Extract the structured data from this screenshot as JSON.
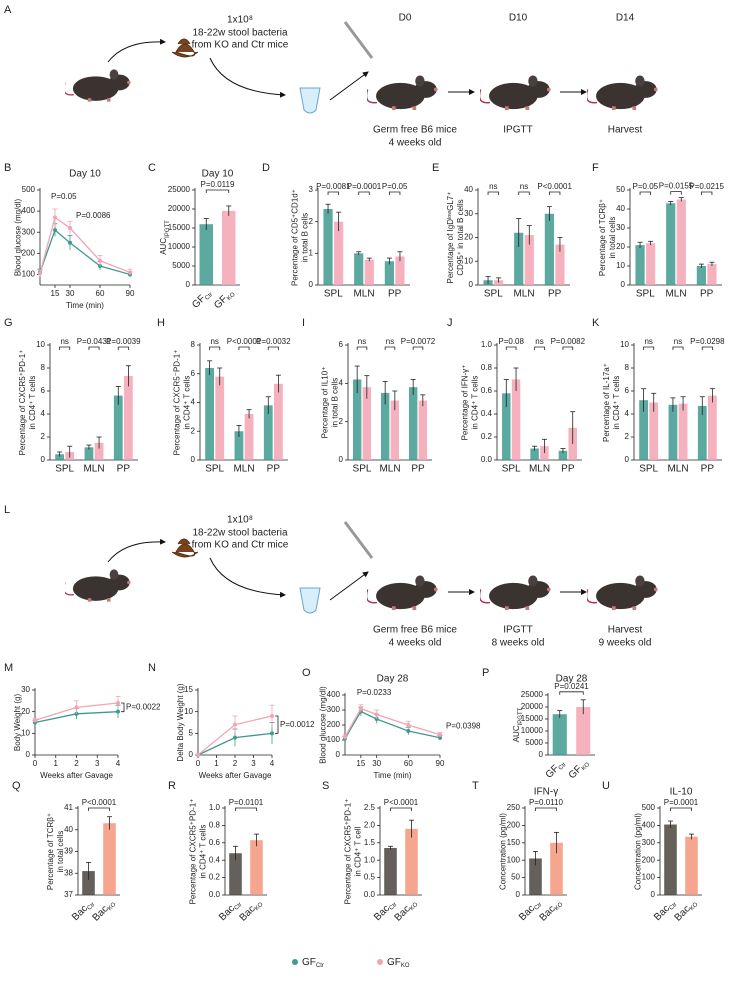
{
  "schematics": [
    {
      "panel": "A",
      "dose": "1x10⁸",
      "source": [
        "18-22w stool bacteria",
        "from KO and Ctr mice"
      ],
      "days": [
        "D0",
        "D10",
        "D14"
      ],
      "steps": [
        [
          "Germ free B6 mice",
          "4 weeks old"
        ],
        [
          "IPGTT"
        ],
        [
          "Harvest"
        ]
      ]
    },
    {
      "panel": "L",
      "dose": "1x10⁸",
      "source": [
        "18-22w stool bacteria",
        "from KO and Ctr mice"
      ],
      "steps": [
        [
          "Germ free B6 mice",
          "4 weeks old"
        ],
        [
          "IPGTT",
          "8 weeks old"
        ],
        [
          "Harvest",
          "9 weeks old"
        ]
      ]
    }
  ],
  "legend": [
    {
      "text": "GF",
      "sub": "Ctr",
      "color": "#3e9a8e"
    },
    {
      "text": "GF",
      "sub": "KO",
      "color": "#f3a3b3"
    }
  ],
  "chart_data": [
    {
      "type": "line",
      "panel": "B",
      "title": "Day 10",
      "ylabel": [
        "Blood glucose (mg/dl)"
      ],
      "xlabel": "Time (min)",
      "x": [
        0,
        15,
        30,
        60,
        90
      ],
      "xlim": [
        0,
        90
      ],
      "xticks": [
        15,
        30,
        60,
        90
      ],
      "ylim": [
        50,
        500
      ],
      "yticks": [
        100,
        200,
        300,
        400,
        500
      ],
      "series": [
        {
          "color": "#3e9a8e",
          "values": [
            110,
            310,
            250,
            140,
            100
          ],
          "errors": [
            15,
            30,
            35,
            20,
            12
          ]
        },
        {
          "color": "#f3a3b3",
          "values": [
            105,
            370,
            320,
            165,
            110
          ],
          "errors": [
            15,
            40,
            30,
            25,
            15
          ]
        }
      ],
      "pvalues": [
        "P=0.05",
        "P=0.0086"
      ]
    },
    {
      "type": "bar",
      "panel": "C",
      "title": "Day 10",
      "ylabel": [
        {
          "text": "AUC",
          "sub": "IPGTT"
        }
      ],
      "categories": [
        {
          "text": "GF",
          "sub": "Ctr"
        },
        {
          "text": "GF",
          "sub": "KO"
        }
      ],
      "values": [
        16000,
        19500
      ],
      "errors": [
        1500,
        1300
      ],
      "colors": [
        "#3e9a8e",
        "#f3a3b3"
      ],
      "ylim": [
        0,
        25000
      ],
      "yticks": [
        0,
        5000,
        10000,
        15000,
        20000,
        25000
      ],
      "pvalues": [
        "P=0.0119"
      ]
    },
    {
      "type": "grouped",
      "panel": "D",
      "ylabel": [
        "Percentage of CD5⁺CD1d⁺",
        "in total B cells"
      ],
      "categories": [
        "SPL",
        "MLN",
        "PP"
      ],
      "ylim": [
        0,
        3
      ],
      "yticks": [
        0,
        1,
        2,
        3
      ],
      "series": [
        {
          "color": "#3e9a8e",
          "values": [
            2.4,
            1.0,
            0.75
          ],
          "errors": [
            0.15,
            0.05,
            0.1
          ]
        },
        {
          "color": "#f3a3b3",
          "values": [
            2.0,
            0.8,
            0.9
          ],
          "errors": [
            0.3,
            0.05,
            0.15
          ]
        }
      ],
      "pvalues": [
        "P=0.0081",
        "P=0.0001",
        "P=0.05"
      ]
    },
    {
      "type": "grouped",
      "panel": "E",
      "ylabel": [
        "Percentage of IgDˡᵒʷGL7⁺",
        "CD95⁺ in total B cells"
      ],
      "categories": [
        "SPL",
        "MLN",
        "PP"
      ],
      "ylim": [
        0,
        40
      ],
      "yticks": [
        0,
        10,
        20,
        30,
        40
      ],
      "series": [
        {
          "color": "#3e9a8e",
          "values": [
            2,
            22,
            30
          ],
          "errors": [
            1.5,
            6,
            3
          ]
        },
        {
          "color": "#f3a3b3",
          "values": [
            2,
            21,
            17
          ],
          "errors": [
            1,
            4,
            3
          ]
        }
      ],
      "pvalues": [
        "ns",
        "ns",
        "P<0.0001"
      ]
    },
    {
      "type": "grouped",
      "panel": "F",
      "ylabel": [
        "Percentage of TCRβ⁺",
        "in total cells"
      ],
      "categories": [
        "SPL",
        "MLN",
        "PP"
      ],
      "ylim": [
        0,
        50
      ],
      "yticks": [
        0,
        10,
        20,
        30,
        40,
        50
      ],
      "series": [
        {
          "color": "#3e9a8e",
          "values": [
            21,
            43,
            10
          ],
          "errors": [
            1.5,
            1,
            1
          ]
        },
        {
          "color": "#f3a3b3",
          "values": [
            22,
            45,
            11
          ],
          "errors": [
            1,
            1,
            1
          ]
        }
      ],
      "pvalues": [
        "P=0.05",
        "P=0.0155",
        "P=0.0215"
      ]
    },
    {
      "type": "grouped",
      "panel": "G",
      "ylabel": [
        "Percentage of CXCR5⁺PD-1⁺",
        "in CD4⁺ T cells"
      ],
      "categories": [
        "SPL",
        "MLN",
        "PP"
      ],
      "ylim": [
        0,
        10
      ],
      "yticks": [
        0,
        2,
        4,
        6,
        8,
        10
      ],
      "series": [
        {
          "color": "#3e9a8e",
          "values": [
            0.5,
            1.1,
            5.6
          ],
          "errors": [
            0.2,
            0.2,
            0.8
          ]
        },
        {
          "color": "#f3a3b3",
          "values": [
            0.7,
            1.5,
            7.3
          ],
          "errors": [
            0.5,
            0.5,
            0.9
          ]
        }
      ],
      "pvalues": [
        "ns",
        "P=0.0431",
        "P=0.0039"
      ]
    },
    {
      "type": "grouped",
      "panel": "H",
      "ylabel": [
        "Percentage of CXCR5⁻PD-1⁺",
        "in CD4⁺ T cells"
      ],
      "categories": [
        "SPL",
        "MLN",
        "PP"
      ],
      "ylim": [
        0,
        8
      ],
      "yticks": [
        0,
        2,
        4,
        6,
        8
      ],
      "series": [
        {
          "color": "#3e9a8e",
          "values": [
            6.4,
            2.0,
            3.8
          ],
          "errors": [
            0.5,
            0.4,
            0.6
          ]
        },
        {
          "color": "#f3a3b3",
          "values": [
            5.8,
            3.2,
            5.3
          ],
          "errors": [
            0.6,
            0.3,
            0.6
          ]
        }
      ],
      "pvalues": [
        "ns",
        "P<0.0001",
        "P=0.0032"
      ]
    },
    {
      "type": "grouped",
      "panel": "I",
      "ylabel": [
        "Percentage of IL10⁺",
        "in total B cells"
      ],
      "categories": [
        "SPL",
        "MLN",
        "PP"
      ],
      "ylim": [
        0,
        6
      ],
      "yticks": [
        0,
        2,
        4,
        6
      ],
      "series": [
        {
          "color": "#3e9a8e",
          "values": [
            4.2,
            3.5,
            3.8
          ],
          "errors": [
            0.7,
            0.6,
            0.4
          ]
        },
        {
          "color": "#f3a3b3",
          "values": [
            3.8,
            3.1,
            3.1
          ],
          "errors": [
            0.6,
            0.5,
            0.3
          ]
        }
      ],
      "pvalues": [
        "ns",
        "ns",
        "P=0.0072"
      ]
    },
    {
      "type": "grouped",
      "panel": "J",
      "ylabel": [
        "Percentage of IFN-γ⁺",
        "in CD4⁺ T cells"
      ],
      "categories": [
        "SPL",
        "MLN",
        "PP"
      ],
      "ylim": [
        0,
        1
      ],
      "yticks": [
        {
          "value": 0,
          "label": "0.0"
        },
        0.2,
        0.4,
        0.6,
        0.8,
        {
          "value": 1,
          "label": "1.0"
        }
      ],
      "series": [
        {
          "color": "#3e9a8e",
          "values": [
            0.58,
            0.1,
            0.08
          ],
          "errors": [
            0.12,
            0.02,
            0.02
          ]
        },
        {
          "color": "#f3a3b3",
          "values": [
            0.7,
            0.12,
            0.28
          ],
          "errors": [
            0.1,
            0.06,
            0.14
          ]
        }
      ],
      "pvalues": [
        "P=0.08",
        "ns",
        "P=0.0082"
      ]
    },
    {
      "type": "grouped",
      "panel": "K",
      "ylabel": [
        "Percentage of IL-17a⁺",
        "in CD4⁺ T cells"
      ],
      "categories": [
        "SPL",
        "MLN",
        "PP"
      ],
      "ylim": [
        0,
        10
      ],
      "yticks": [
        0,
        2,
        4,
        6,
        8,
        10
      ],
      "series": [
        {
          "color": "#3e9a8e",
          "values": [
            5.2,
            4.8,
            4.7
          ],
          "errors": [
            1.0,
            0.6,
            0.8
          ]
        },
        {
          "color": "#f3a3b3",
          "values": [
            5.0,
            4.9,
            5.6
          ],
          "errors": [
            0.8,
            0.6,
            0.6
          ]
        }
      ],
      "pvalues": [
        "ns",
        "ns",
        "P=0.0298"
      ]
    },
    {
      "type": "line",
      "panel": "M",
      "ylabel": [
        "Body Weight (g)"
      ],
      "xlabel": "Weeks after Gavage",
      "x": [
        0,
        2,
        4
      ],
      "xlim": [
        0,
        4
      ],
      "xticks": [
        0,
        1,
        2,
        3,
        4
      ],
      "ylim": [
        0,
        30
      ],
      "yticks": [
        0,
        10,
        20,
        30
      ],
      "series": [
        {
          "color": "#3e9a8e",
          "values": [
            15,
            19,
            20
          ],
          "errors": [
            1,
            2.5,
            3
          ]
        },
        {
          "color": "#f3a3b3",
          "values": [
            16,
            22,
            24
          ],
          "errors": [
            1,
            3,
            3
          ]
        }
      ],
      "pvalues": [
        "P=0.0022"
      ]
    },
    {
      "type": "line",
      "panel": "N",
      "ylabel": [
        "Delta Body Weight (g)"
      ],
      "xlabel": "Weeks after Gavage",
      "x": [
        0,
        2,
        4
      ],
      "xlim": [
        0,
        4
      ],
      "xticks": [
        0,
        1,
        2,
        3,
        4
      ],
      "ylim": [
        0,
        15
      ],
      "yticks": [
        0,
        5,
        10,
        15
      ],
      "series": [
        {
          "color": "#3e9a8e",
          "values": [
            0,
            4,
            5
          ],
          "errors": [
            0,
            2,
            2.5
          ]
        },
        {
          "color": "#f3a3b3",
          "values": [
            0,
            7,
            9
          ],
          "errors": [
            0,
            2,
            2.5
          ]
        }
      ],
      "pvalues": [
        "P=0.0012"
      ]
    },
    {
      "type": "line",
      "panel": "O",
      "title": "Day 28",
      "ylabel": [
        "Blood glucose (mg/dl)"
      ],
      "xlabel": "Time (min)",
      "x": [
        0,
        15,
        30,
        60,
        90
      ],
      "xlim": [
        0,
        90
      ],
      "xticks": [
        15,
        30,
        60,
        90
      ],
      "ylim": [
        0,
        400
      ],
      "yticks": [
        0,
        100,
        200,
        300,
        400
      ],
      "series": [
        {
          "color": "#3e9a8e",
          "values": [
            110,
            290,
            240,
            160,
            115
          ],
          "errors": [
            15,
            30,
            30,
            25,
            15
          ]
        },
        {
          "color": "#f3a3b3",
          "values": [
            120,
            310,
            270,
            200,
            135
          ],
          "errors": [
            15,
            25,
            30,
            25,
            15
          ]
        }
      ],
      "pvalues": [
        "P=0.0233",
        "P=0.0398"
      ]
    },
    {
      "type": "bar",
      "panel": "P",
      "title": "Day 28",
      "ylabel": [
        {
          "text": "AUC",
          "sub": "IPGTT"
        }
      ],
      "categories": [
        {
          "text": "GF",
          "sub": "Ctr"
        },
        {
          "text": "GF",
          "sub": "KO"
        }
      ],
      "values": [
        17000,
        20000
      ],
      "errors": [
        1500,
        3000
      ],
      "colors": [
        "#3e9a8e",
        "#f3a3b3"
      ],
      "ylim": [
        0,
        25000
      ],
      "yticks": [
        0,
        5000,
        10000,
        15000,
        20000,
        25000
      ],
      "pvalues": [
        "P=0.0241"
      ]
    },
    {
      "type": "bar",
      "panel": "Q",
      "ylabel": [
        "Percentage of TCRβ⁺",
        "in total cells"
      ],
      "categories": [
        {
          "text": "Bac",
          "sub": "Ctr"
        },
        {
          "text": "Bac",
          "sub": "KO"
        }
      ],
      "values": [
        38.1,
        40.3
      ],
      "errors": [
        0.4,
        0.3
      ],
      "colors": [
        "#4a4440",
        "#f4977a"
      ],
      "ylim": [
        37,
        41
      ],
      "yticks": [
        37,
        38,
        39,
        40,
        41
      ],
      "pvalues": [
        "P<0.0001"
      ]
    },
    {
      "type": "bar",
      "panel": "R",
      "ylabel": [
        "Percentage of CXCR5⁺PD-1⁺",
        "in CD4⁺ T cells"
      ],
      "categories": [
        {
          "text": "Bac",
          "sub": "Ctr"
        },
        {
          "text": "Bac",
          "sub": "KO"
        }
      ],
      "values": [
        0.48,
        0.63
      ],
      "errors": [
        0.08,
        0.07
      ],
      "colors": [
        "#4a4440",
        "#f4977a"
      ],
      "ylim": [
        0,
        1
      ],
      "yticks": [
        {
          "value": 0,
          "label": "0.0"
        },
        0.2,
        0.4,
        0.6,
        0.8,
        {
          "value": 1,
          "label": "1.0"
        }
      ],
      "pvalues": [
        "P=0.0101"
      ]
    },
    {
      "type": "bar",
      "panel": "S",
      "ylabel": [
        "Percentage of CXCR5⁺PD-1⁺",
        "in CD4⁺ T cell"
      ],
      "categories": [
        {
          "text": "Bac",
          "sub": "Ctr"
        },
        {
          "text": "Bac",
          "sub": "KO"
        }
      ],
      "values": [
        1.35,
        1.9
      ],
      "errors": [
        0.05,
        0.25
      ],
      "colors": [
        "#4a4440",
        "#f4977a"
      ],
      "ylim": [
        0,
        2.5
      ],
      "yticks": [
        {
          "value": 0,
          "label": "0.0"
        },
        0.5,
        {
          "value": 1,
          "label": "1.0"
        },
        1.5,
        {
          "value": 2,
          "label": "2.0"
        },
        2.5
      ],
      "pvalues": [
        "P<0.0001"
      ]
    },
    {
      "type": "bar",
      "panel": "T",
      "title": "IFN-γ",
      "ylabel": [
        "Concentration (pg/ml)"
      ],
      "categories": [
        {
          "text": "Bac",
          "sub": "Ctr"
        },
        {
          "text": "Bac",
          "sub": "KO"
        }
      ],
      "values": [
        105,
        150
      ],
      "errors": [
        20,
        30
      ],
      "colors": [
        "#4a4440",
        "#f4977a"
      ],
      "ylim": [
        0,
        250
      ],
      "yticks": [
        0,
        50,
        100,
        150,
        200,
        250
      ],
      "pvalues": [
        "P=0.0110"
      ]
    },
    {
      "type": "bar",
      "panel": "U",
      "title": "IL-10",
      "ylabel": [
        "Concentration (pg/ml)"
      ],
      "categories": [
        {
          "text": "Bac",
          "sub": "Ctr"
        },
        {
          "text": "Bac",
          "sub": "KO"
        }
      ],
      "values": [
        405,
        335
      ],
      "errors": [
        20,
        15
      ],
      "colors": [
        "#4a4440",
        "#f4977a"
      ],
      "ylim": [
        0,
        500
      ],
      "yticks": [
        0,
        100,
        200,
        300,
        400,
        500
      ],
      "pvalues": [
        "P=0.0001"
      ]
    }
  ]
}
